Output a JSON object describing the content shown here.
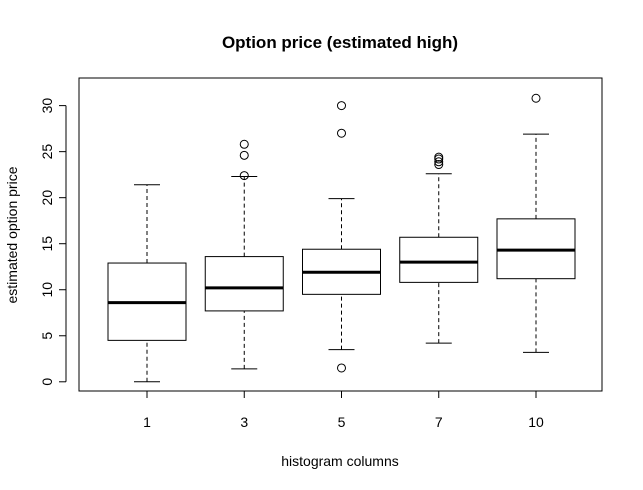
{
  "chart_data": {
    "type": "boxplot",
    "title": "Option price (estimated high)",
    "xlabel": "histogram columns",
    "ylabel": "estimated option price",
    "ylim": [
      -1,
      33
    ],
    "yticks": [
      0,
      5,
      10,
      15,
      20,
      25,
      30
    ],
    "categories": [
      "1",
      "3",
      "5",
      "7",
      "10"
    ],
    "boxes": [
      {
        "category": "1",
        "whisker_low": 0.0,
        "q1": 4.5,
        "median": 8.6,
        "q3": 12.9,
        "whisker_high": 21.4,
        "outliers": []
      },
      {
        "category": "3",
        "whisker_low": 1.4,
        "q1": 7.7,
        "median": 10.2,
        "q3": 13.6,
        "whisker_high": 22.3,
        "outliers": [
          22.4,
          24.6,
          25.8
        ]
      },
      {
        "category": "5",
        "whisker_low": 3.5,
        "q1": 9.5,
        "median": 11.9,
        "q3": 14.4,
        "whisker_high": 19.9,
        "outliers": [
          1.5,
          27.0,
          30.0
        ]
      },
      {
        "category": "7",
        "whisker_low": 4.2,
        "q1": 10.8,
        "median": 13.0,
        "q3": 15.7,
        "whisker_high": 22.6,
        "outliers": [
          23.6,
          23.9,
          24.2,
          24.4
        ]
      },
      {
        "category": "10",
        "whisker_low": 3.2,
        "q1": 11.2,
        "median": 14.3,
        "q3": 17.7,
        "whisker_high": 26.9,
        "outliers": [
          30.8
        ]
      }
    ]
  }
}
